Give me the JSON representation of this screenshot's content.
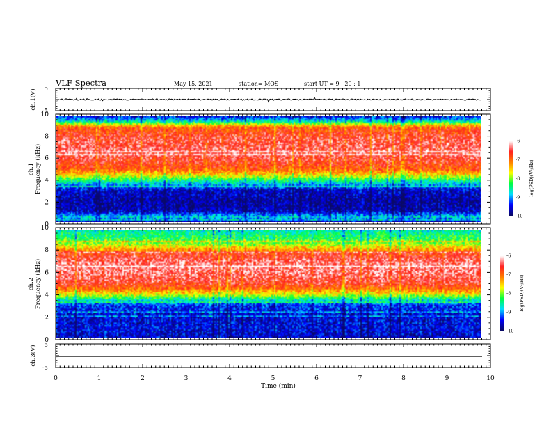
{
  "header": {
    "title": "VLF Spectra",
    "date": "May 15, 2021",
    "station": "station= MOS",
    "start": "start  UT  =   9  : 20 : 1"
  },
  "chart_data": [
    {
      "type": "line",
      "panel": "ch1_waveform",
      "ylabel": "ch.1(V)",
      "ylim": [
        -5,
        5
      ],
      "yticks": [
        "5",
        "-5"
      ],
      "xlim": [
        0,
        10
      ],
      "trace_level": 0,
      "color": "#000000"
    },
    {
      "type": "heatmap",
      "panel": "ch1_spectrogram",
      "ylabel": "ch.1\nFrequency (kHz)",
      "ylim": [
        0,
        10
      ],
      "yticks": [
        "0",
        "2",
        "4",
        "6",
        "8",
        "10"
      ],
      "xlim": [
        0,
        9.8
      ],
      "colorbar": {
        "label": "log(PSD)(V²/Hz)",
        "range": [
          -10,
          -6
        ],
        "ticks": [
          "-6",
          "-7",
          "-8",
          "-9",
          "-10"
        ]
      },
      "profile_khz": [
        [
          0.0,
          -9.6
        ],
        [
          0.4,
          -8.8
        ],
        [
          1.0,
          -9.7
        ],
        [
          2.0,
          -9.8
        ],
        [
          3.0,
          -9.6
        ],
        [
          3.5,
          -9.0
        ],
        [
          4.0,
          -8.3
        ],
        [
          4.5,
          -7.5
        ],
        [
          5.0,
          -6.9
        ],
        [
          6.0,
          -6.55
        ],
        [
          7.0,
          -6.45
        ],
        [
          8.0,
          -6.55
        ],
        [
          9.0,
          -6.9
        ],
        [
          9.3,
          -7.8
        ],
        [
          9.6,
          -8.7
        ],
        [
          10.0,
          -9.4
        ]
      ]
    },
    {
      "type": "heatmap",
      "panel": "ch2_spectrogram",
      "ylabel": "ch.2\nFrequency (kHz)",
      "ylim": [
        0,
        10
      ],
      "yticks": [
        "0",
        "2",
        "4",
        "6",
        "8",
        "10"
      ],
      "xlim": [
        0,
        9.8
      ],
      "colorbar": {
        "label": "log(PSD)(V²/Hz)",
        "range": [
          -10,
          -6
        ],
        "ticks": [
          "-6",
          "-7",
          "-8",
          "-9",
          "-10"
        ]
      },
      "profile_khz": [
        [
          0.0,
          -9.6
        ],
        [
          1.0,
          -9.5
        ],
        [
          2.0,
          -9.6
        ],
        [
          3.0,
          -9.3
        ],
        [
          3.5,
          -8.6
        ],
        [
          4.0,
          -7.7
        ],
        [
          4.5,
          -7.0
        ],
        [
          5.0,
          -6.6
        ],
        [
          6.0,
          -6.35
        ],
        [
          7.0,
          -6.35
        ],
        [
          7.8,
          -6.7
        ],
        [
          8.3,
          -7.4
        ],
        [
          8.8,
          -8.0
        ],
        [
          9.3,
          -8.3
        ],
        [
          10.0,
          -8.6
        ]
      ]
    },
    {
      "type": "line",
      "panel": "ch3_waveform",
      "ylabel": "ch.3(V)",
      "ylim": [
        -5,
        5
      ],
      "yticks": [
        "5",
        "-5"
      ],
      "xlim": [
        0,
        10
      ],
      "trace_level": 0,
      "color": "#000000"
    }
  ],
  "xaxis": {
    "label": "Time (min)",
    "ticks": [
      "0",
      "1",
      "2",
      "3",
      "4",
      "5",
      "6",
      "7",
      "8",
      "9",
      "10"
    ],
    "range": [
      0,
      10
    ]
  },
  "colors": {
    "colormap": [
      "#0a0a66",
      "#0000ff",
      "#00e0ff",
      "#00ff40",
      "#ffff00",
      "#ff8000",
      "#ff2020",
      "#ffffff"
    ]
  }
}
